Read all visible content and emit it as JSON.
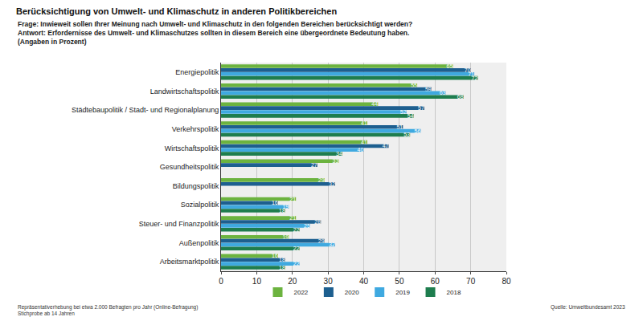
{
  "chart_data": {
    "type": "bar",
    "orientation": "horizontal",
    "title": "Berücksichtigung von Umwelt- und Klimaschutz in anderen Politikbereichen",
    "subtitle": [
      "Frage: Inwieweit sollen Ihrer Meinung nach Umwelt- und Klimaschutz in den folgenden Bereichen berücksichtigt werden?",
      "Antwort: Erfordernisse des Umwelt- und Klimaschutzes sollten in diesem Bereich eine übergeordnete Bedeutung haben.",
      "(Angaben in Prozent)"
    ],
    "notes": [
      "Repräsentativerhebung bei etwa 2.000 Befragten pro Jahr (Online-Befragung)",
      "Stichprobe ab 14 Jahren"
    ],
    "source": "Quelle: Umweltbundesamt 2023",
    "categories": [
      "Energiepolitik",
      "Landwirtschaftspolitik",
      "Städtebaupolitik / Stadt- und Regionalplanung",
      "Verkehrspolitik",
      "Wirtschaftspolitik",
      "Gesundheitspolitik",
      "Bildungspolitik",
      "Sozialpolitik",
      "Steuer- und Finanzpolitik",
      "Außenpolitik",
      "Arbeitsmarktpolitik"
    ],
    "series": [
      {
        "name": "2022",
        "color": "#6cb33f",
        "values": [
          65,
          55,
          44,
          41,
          41,
          33,
          29,
          21,
          21,
          19,
          16
        ]
      },
      {
        "name": "2020",
        "color": "#1d5f8f",
        "values": [
          70,
          59,
          57,
          51,
          47,
          27,
          32,
          16,
          28,
          29,
          18
        ]
      },
      {
        "name": "2019",
        "color": "#3fa9e0",
        "values": [
          71,
          63,
          52,
          56,
          40,
          null,
          null,
          19,
          25,
          32,
          22
        ]
      },
      {
        "name": "2018",
        "color": "#1e7d4e",
        "values": [
          72,
          68,
          54,
          53,
          34,
          null,
          null,
          18,
          22,
          22,
          18
        ]
      }
    ],
    "xlim": [
      0,
      80
    ],
    "xticks": [
      0,
      10,
      20,
      30,
      40,
      50,
      60,
      70,
      80
    ],
    "grid": true,
    "legend": "bottom",
    "data_labels": true
  }
}
